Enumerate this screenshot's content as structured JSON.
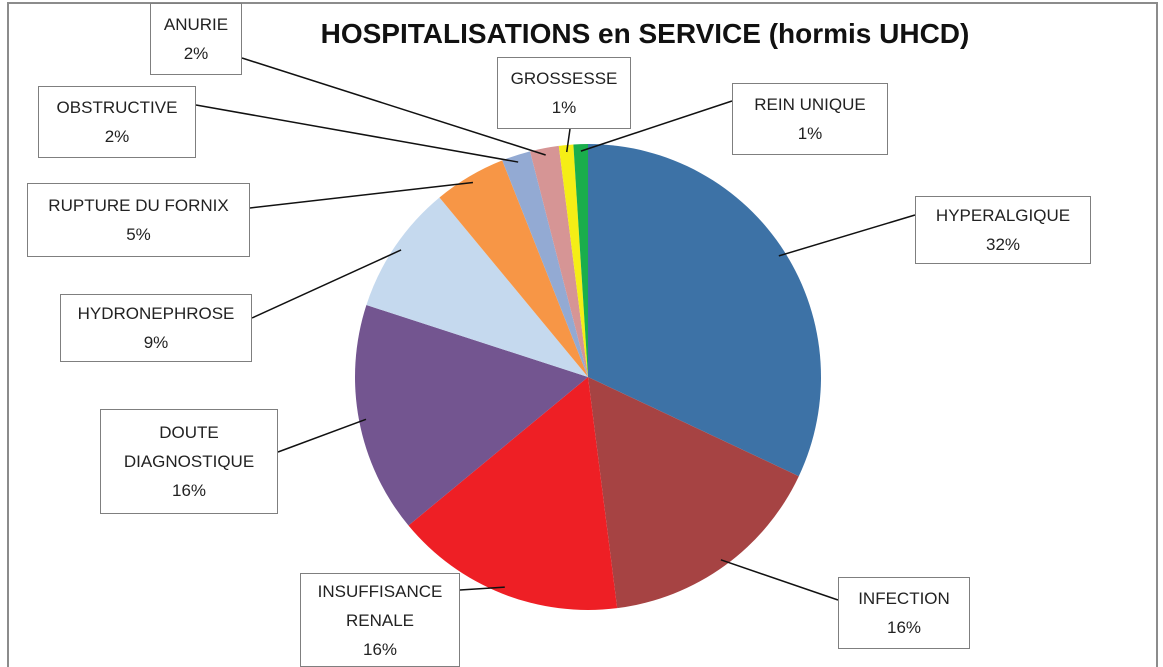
{
  "chart_data": {
    "type": "pie",
    "title": "HOSPITALISATIONS en SERVICE (hormis UHCD)",
    "categories": [
      "HYPERALGIQUE",
      "INFECTION",
      "INSUFFISANCE RENALE",
      "DOUTE DIAGNOSTIQUE",
      "HYDRONEPHROSE",
      "RUPTURE DU FORNIX",
      "OBSTRUCTIVE",
      "ANURIE",
      "GROSSESSE",
      "REIN UNIQUE"
    ],
    "values": [
      32,
      16,
      16,
      16,
      9,
      5,
      2,
      2,
      1,
      1
    ],
    "value_labels": [
      "32%",
      "16%",
      "16%",
      "16%",
      "9%",
      "5%",
      "2%",
      "2%",
      "1%",
      "1%"
    ],
    "colors": [
      "#3d72a6",
      "#a64343",
      "#ee1f25",
      "#735590",
      "#c5d9ee",
      "#f79646",
      "#93aad3",
      "#d69595",
      "#f5ee16",
      "#1aae4c"
    ]
  }
}
